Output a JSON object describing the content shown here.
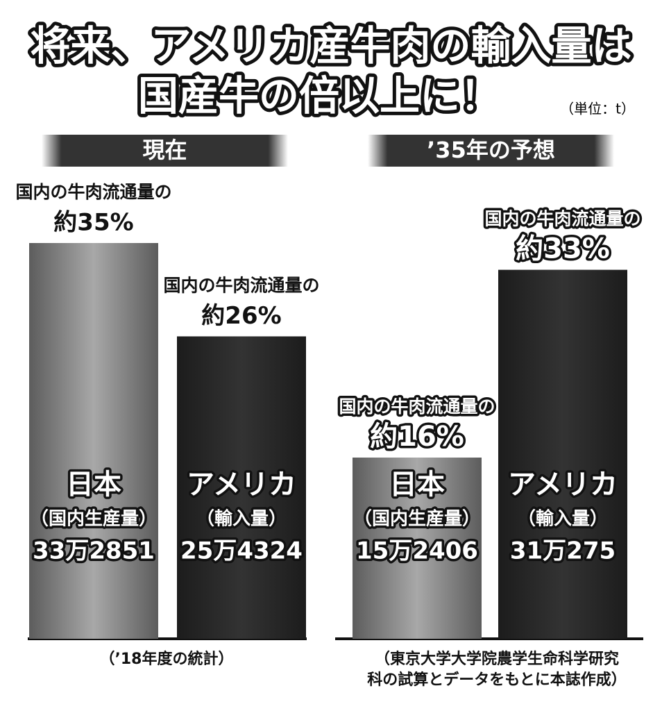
{
  "chart_data": {
    "type": "bar",
    "title": [
      "将来、アメリカ産牛肉の輸入量は",
      "国産牛の倍以上に！"
    ],
    "unit": "（単位：t）",
    "groups": [
      {
        "label": "現在",
        "note": [
          "（’18年度の統計）"
        ],
        "bars": [
          {
            "name": "日本",
            "sub": "（国内生産量）",
            "value": 332851,
            "value_label": "33万2851",
            "share_text": "国内の牛肉流通量の",
            "share_label": "約35%",
            "color": "#a8a8a8"
          },
          {
            "name": "アメリカ",
            "sub": "（輸入量）",
            "value": 254324,
            "value_label": "25万4324",
            "share_text": "国内の牛肉流通量の",
            "share_label": "約26%",
            "color": "#333333"
          }
        ]
      },
      {
        "label": "’35年の予想",
        "note": [
          "（東京大学大学院農学生命科学研究",
          "科の試算とデータをもとに本誌作成）"
        ],
        "bars": [
          {
            "name": "日本",
            "sub": "（国内生産量）",
            "value": 152406,
            "value_label": "15万2406",
            "share_text": "国内の牛肉流通量の",
            "share_label": "約16%",
            "color": "#a8a8a8"
          },
          {
            "name": "アメリカ",
            "sub": "（輸入量）",
            "value": 310275,
            "value_label": "31万275",
            "share_text": "国内の牛肉流通量の",
            "share_label": "約33%",
            "color": "#333333"
          }
        ]
      }
    ]
  }
}
